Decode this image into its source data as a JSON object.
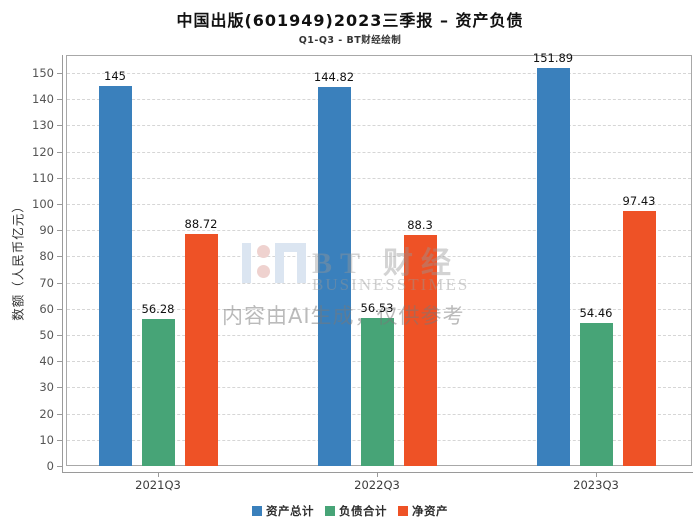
{
  "chart_data": {
    "type": "bar",
    "title": "中国出版(601949)2023三季报 – 资产负债",
    "subtitle": "Q1-Q3 - BT财经绘制",
    "categories": [
      "2021Q3",
      "2022Q3",
      "2023Q3"
    ],
    "series": [
      {
        "name": "资产总计",
        "color": "#3a80bc",
        "values": [
          145,
          144.82,
          151.89
        ]
      },
      {
        "name": "负债合计",
        "color": "#47a477",
        "values": [
          56.28,
          56.53,
          54.46
        ]
      },
      {
        "name": "净资产",
        "color": "#ee5226",
        "values": [
          88.72,
          88.3,
          97.43
        ]
      }
    ],
    "xlabel": "",
    "ylabel": "数额（人民币亿元）",
    "ylim": [
      0,
      150
    ],
    "ytick_step": 10,
    "grid": true,
    "legend_position": "bottom",
    "bar_value_labels": true
  },
  "watermark": {
    "brand": "BT 财经",
    "brand_sub": "BUSINESSTIMES",
    "disclaimer": "内容由AI生成，仅供参考"
  }
}
